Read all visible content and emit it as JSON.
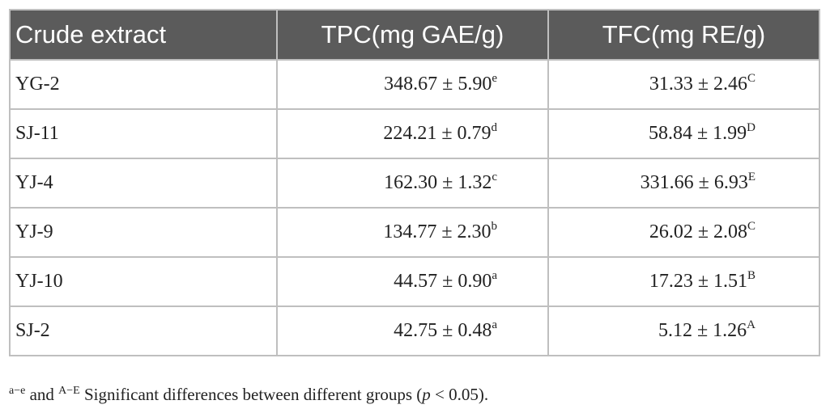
{
  "table": {
    "headers": [
      "Crude extract",
      "TPC(mg GAE/g)",
      "TFC(mg RE/g)"
    ],
    "rows": [
      {
        "name": "YG-2",
        "tpc": "348.67 ± 5.90",
        "tpc_sup": "e",
        "tfc": "31.33 ± 2.46",
        "tfc_sup": "C"
      },
      {
        "name": "SJ-11",
        "tpc": "224.21 ± 0.79",
        "tpc_sup": "d",
        "tfc": "58.84 ± 1.99",
        "tfc_sup": "D"
      },
      {
        "name": "YJ-4",
        "tpc": "162.30 ± 1.32",
        "tpc_sup": "c",
        "tfc": "331.66 ± 6.93",
        "tfc_sup": "E"
      },
      {
        "name": "YJ-9",
        "tpc": "134.77 ± 2.30",
        "tpc_sup": "b",
        "tfc": "26.02 ± 2.08",
        "tfc_sup": "C"
      },
      {
        "name": "YJ-10",
        "tpc": "44.57 ± 0.90",
        "tpc_sup": "a",
        "tfc": "17.23 ± 1.51",
        "tfc_sup": "B"
      },
      {
        "name": "SJ-2",
        "tpc": "42.75 ± 0.48",
        "tpc_sup": "a",
        "tfc": "5.12 ± 1.26",
        "tfc_sup": "A"
      }
    ]
  },
  "footnote": {
    "sup1": "a−e",
    "mid": " and ",
    "sup2": "A−E",
    "text_before_p": " Significant differences between different groups (",
    "p": "p",
    "text_after_p": " < 0.05)."
  },
  "colors": {
    "header_bg": "#5b5b5b",
    "header_text": "#ffffff",
    "border": "#bfbfbf"
  }
}
